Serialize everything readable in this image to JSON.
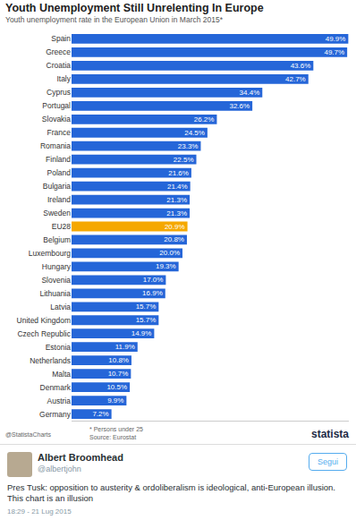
{
  "chart_data": {
    "type": "bar",
    "title": "Youth Unemployment Still Unrelenting In Europe",
    "subtitle": "Youth unemployment rate in the European Union in March 2015*",
    "orientation": "horizontal",
    "categories": [
      "Spain",
      "Greece",
      "Croatia",
      "Italy",
      "Cyprus",
      "Portugal",
      "Slovakia",
      "France",
      "Romania",
      "Finland",
      "Poland",
      "Bulgaria",
      "Ireland",
      "Sweden",
      "EU28",
      "Belgium",
      "Luxembourg",
      "Hungary",
      "Slovenia",
      "Lithuania",
      "Latvia",
      "United Kingdom",
      "Czech Republic",
      "Estonia",
      "Netherlands",
      "Malta",
      "Denmark",
      "Austria",
      "Germany"
    ],
    "values": [
      49.9,
      49.7,
      43.6,
      42.7,
      34.4,
      32.6,
      26.2,
      24.5,
      23.3,
      22.5,
      21.6,
      21.4,
      21.3,
      21.3,
      20.9,
      20.8,
      20.0,
      19.3,
      17.0,
      16.9,
      15.7,
      15.7,
      14.9,
      11.9,
      10.8,
      10.7,
      10.5,
      9.9,
      7.2
    ],
    "value_labels": [
      "49.9%",
      "49.7%",
      "43.6%",
      "42.7%",
      "34.4%",
      "32.6%",
      "26.2%",
      "24.5%",
      "23.3%",
      "22.5%",
      "21.6%",
      "21.4%",
      "21.3%",
      "21.3%",
      "20.9%",
      "20.8%",
      "20.0%",
      "19.3%",
      "17.0%",
      "16.9%",
      "15.7%",
      "15.7%",
      "14.9%",
      "11.9%",
      "10.8%",
      "10.7%",
      "10.5%",
      "9.9%",
      "7.2%"
    ],
    "colors": [
      "#2566d8",
      "#2566d8",
      "#2566d8",
      "#2566d8",
      "#2566d8",
      "#2566d8",
      "#2566d8",
      "#2566d8",
      "#2566d8",
      "#2566d8",
      "#2566d8",
      "#2566d8",
      "#2566d8",
      "#2566d8",
      "#f5a800",
      "#2566d8",
      "#2566d8",
      "#2566d8",
      "#2566d8",
      "#2566d8",
      "#2566d8",
      "#2566d8",
      "#2566d8",
      "#2566d8",
      "#2566d8",
      "#2566d8",
      "#2566d8",
      "#2566d8",
      "#2566d8"
    ],
    "xlim": [
      0,
      50
    ],
    "xticks": [],
    "data_labels": true,
    "tick_labels": "y",
    "grid": false
  },
  "footer": {
    "credit": "@StatistaCharts",
    "footnote": "* Persons under 25",
    "source": "Source: Eurostat",
    "brand": "statista"
  },
  "tweet": {
    "name": "Albert Broomhead",
    "handle": "@albertjohn",
    "button": "Segui",
    "text": "Pres Tusk: opposition to austerity & ordoliberalism is ideological, anti-European illusion. This chart is an illusion",
    "time": "18:29 - 21 Lug 2015"
  }
}
